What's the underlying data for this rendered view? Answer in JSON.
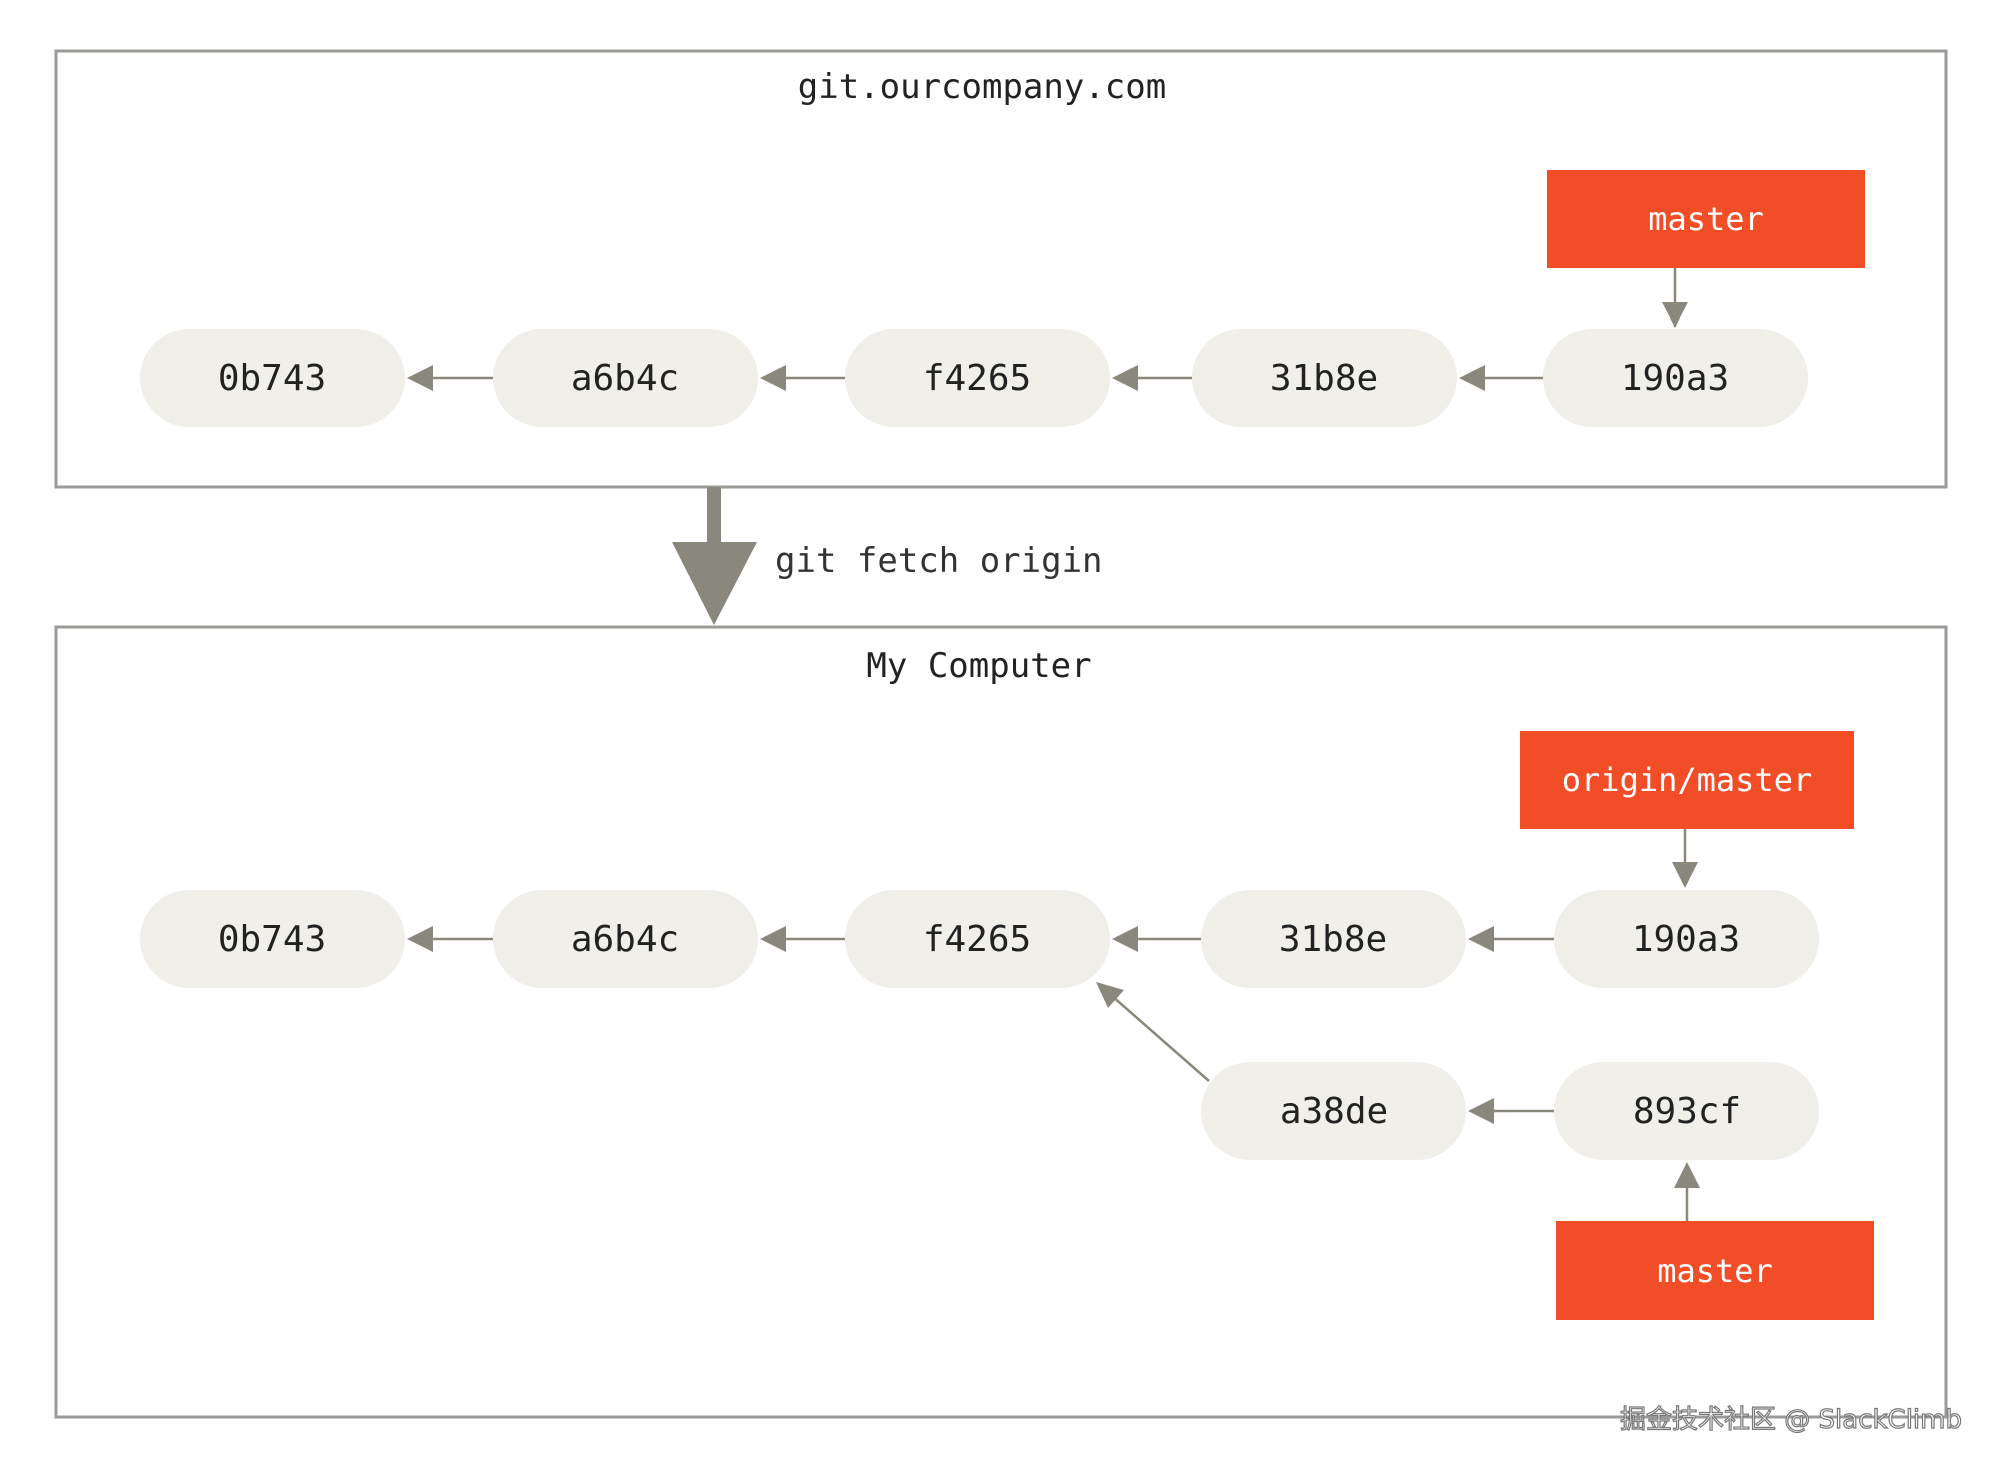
{
  "colors": {
    "commit_fill": "#f0efea",
    "branch_fill": "#f14e27",
    "arrow": "#8a877c",
    "frame": "#9b9a96"
  },
  "remote": {
    "title": "git.ourcompany.com",
    "branch": "master",
    "commits": [
      "0b743",
      "a6b4c",
      "f4265",
      "31b8e",
      "190a3"
    ]
  },
  "command": "git fetch origin",
  "local": {
    "title": "My Computer",
    "remote_branch": "origin/master",
    "branch": "master",
    "commits": [
      "0b743",
      "a6b4c",
      "f4265",
      "31b8e",
      "190a3"
    ],
    "divergent_commits": [
      "a38de",
      "893cf"
    ]
  },
  "watermark": "掘金技术社区 @ SlackClimb"
}
